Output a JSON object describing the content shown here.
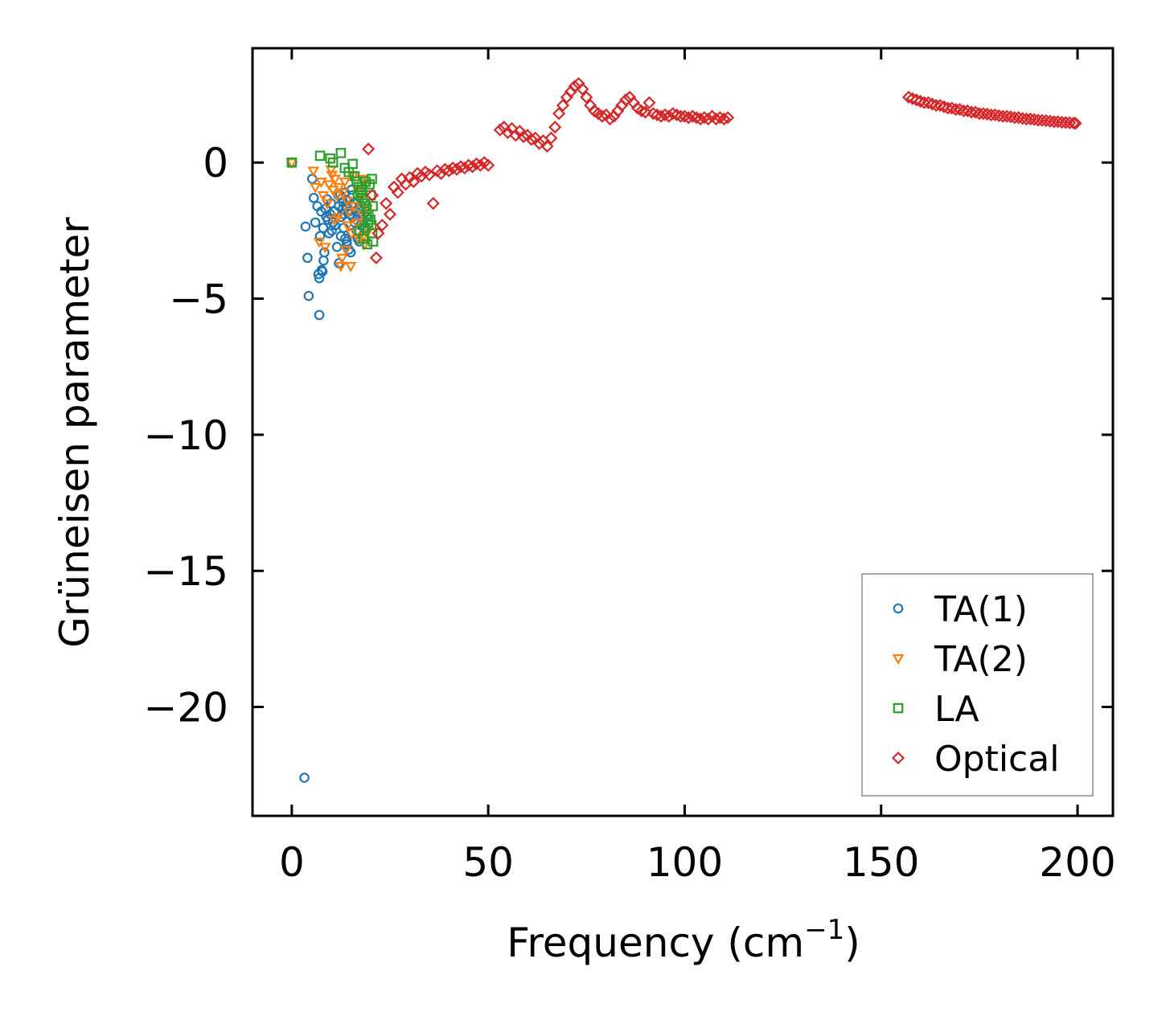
{
  "chart_data": {
    "type": "scatter",
    "title": "",
    "xlabel": "Frequency (cm",
    "xlabel_sup": "−1",
    "xlabel_close": ")",
    "ylabel": "Grüneisen parameter",
    "xlim": [
      -10,
      209
    ],
    "ylim": [
      -24,
      4.2
    ],
    "xticks": [
      0,
      50,
      100,
      150,
      200
    ],
    "xtick_labels": [
      "0",
      "50",
      "100",
      "150",
      "200"
    ],
    "yticks": [
      0,
      -5,
      -10,
      -15,
      -20
    ],
    "ytick_labels": [
      "0",
      "−5",
      "−10",
      "−15",
      "−20"
    ],
    "grid": false,
    "legend_position": "lower-right",
    "series": [
      {
        "name": "TA(1)",
        "marker": "circle",
        "color": "#1f77b4",
        "x": [
          0.1,
          3.2,
          3.5,
          4.0,
          4.3,
          5.2,
          5.6,
          6.0,
          6.5,
          7.0,
          7.0,
          7.2,
          7.5,
          7.8,
          8.0,
          8.3,
          8.6,
          9.0,
          9.2,
          9.5,
          9.8,
          10.0,
          10.2,
          10.5,
          10.8,
          11.0,
          11.5,
          12.0,
          12.0,
          12.3,
          12.5,
          12.8,
          13.0,
          13.2,
          13.5,
          13.6,
          13.8,
          14.0,
          14.2,
          14.5,
          14.8,
          15.0,
          15.2,
          15.5,
          15.8,
          16.0,
          16.3,
          16.5,
          16.8,
          17.0,
          17.2,
          17.5,
          17.8,
          18.0,
          18.3,
          18.5,
          18.8,
          19.0,
          13.0,
          14.5,
          15.5,
          16.5,
          17.5,
          12.5,
          11.8,
          14.0,
          15.2,
          16.8,
          18.2,
          13.3,
          6.8,
          7.6,
          8.1,
          8.8
        ],
        "y": [
          0.0,
          -22.6,
          -2.35,
          -3.5,
          -4.9,
          -0.6,
          -1.3,
          -2.2,
          -1.6,
          -4.25,
          -5.6,
          -2.7,
          -1.8,
          -4.0,
          -2.4,
          -3.3,
          -1.7,
          -1.35,
          -2.1,
          -2.6,
          -1.9,
          -1.5,
          -2.5,
          -2.2,
          -1.8,
          -2.3,
          -3.1,
          -3.7,
          -1.6,
          -1.2,
          -2.0,
          -1.3,
          -1.7,
          -2.4,
          -1.1,
          -2.8,
          -1.6,
          -2.9,
          -1.4,
          -3.2,
          -1.9,
          -3.3,
          -2.6,
          -1.2,
          -1.5,
          -2.2,
          -1.8,
          -2.5,
          -1.4,
          -1.7,
          -2.9,
          -2.3,
          -1.6,
          -2.1,
          -1.9,
          -2.4,
          -1.5,
          -2.0,
          -1.45,
          -1.8,
          -2.0,
          -2.1,
          -1.7,
          -2.7,
          -1.2,
          -3.0,
          -1.0,
          -2.8,
          -2.2,
          -1.9,
          -4.1,
          -3.95,
          -3.6,
          -2.0
        ]
      },
      {
        "name": "TA(2)",
        "marker": "triangle-down",
        "color": "#ff7f0e",
        "x": [
          0.0,
          5.5,
          6.0,
          7.5,
          8.5,
          9.5,
          10.0,
          10.5,
          11.0,
          11.5,
          12.0,
          12.5,
          13.0,
          13.5,
          14.0,
          14.5,
          15.0,
          15.5,
          16.0,
          16.5,
          17.0,
          17.5,
          18.0,
          18.5,
          19.0,
          19.5,
          7.0,
          9.0,
          11.8,
          13.8,
          15.2,
          16.8,
          18.2,
          8.0,
          10.2,
          14.2,
          17.8,
          19.2,
          12.8,
          10.8
        ],
        "y": [
          0.0,
          -0.3,
          -0.9,
          -0.7,
          -3.1,
          -0.8,
          -0.25,
          -1.0,
          -0.6,
          -1.2,
          -0.9,
          -3.8,
          -1.1,
          -0.7,
          -1.4,
          -1.8,
          -3.8,
          -0.5,
          -1.6,
          -2.2,
          -2.8,
          -1.3,
          -1.9,
          -3.0,
          -0.8,
          -2.5,
          -2.9,
          -1.5,
          -2.0,
          -3.2,
          -2.6,
          -1.0,
          -2.7,
          -1.2,
          -0.45,
          -2.3,
          -0.6,
          -1.7,
          -3.5,
          -2.1
        ]
      },
      {
        "name": "LA",
        "marker": "square",
        "color": "#2ca02c",
        "x": [
          0.0,
          7.2,
          9.8,
          10.5,
          12.5,
          13.5,
          14.5,
          15.5,
          16.0,
          16.5,
          17.0,
          17.5,
          18.0,
          18.5,
          19.0,
          19.5,
          20.0,
          20.3,
          20.5,
          20.7,
          17.2,
          18.2,
          19.2,
          20.1,
          19.8,
          18.8,
          17.8,
          16.8,
          20.6,
          19.4,
          18.6,
          20.4
        ],
        "y": [
          0.0,
          0.25,
          0.15,
          0.0,
          0.35,
          -0.2,
          -0.35,
          -0.05,
          -0.5,
          -0.7,
          -0.9,
          -1.1,
          -1.3,
          -1.5,
          -1.7,
          -1.9,
          -2.1,
          -2.3,
          -2.6,
          -2.9,
          -2.5,
          -2.8,
          -3.0,
          -1.2,
          -0.8,
          -0.7,
          -0.9,
          -1.2,
          -1.6,
          -2.2,
          -2.4,
          -0.6
        ]
      },
      {
        "name": "Optical",
        "marker": "diamond",
        "color": "#d62728",
        "x": [
          19.5,
          20.5,
          21.5,
          22.0,
          23.0,
          24.0,
          25.0,
          26.0,
          27.0,
          28.0,
          29.0,
          30.0,
          31.0,
          32.0,
          33.0,
          34.0,
          35.0,
          36.0,
          37.0,
          38.0,
          39.0,
          40.0,
          41.0,
          42.0,
          43.0,
          44.0,
          45.0,
          46.0,
          47.0,
          48.0,
          49.0,
          50.0,
          53.0,
          54.0,
          55.0,
          56.0,
          57.0,
          58.0,
          59.0,
          60.0,
          61.0,
          62.0,
          63.0,
          64.0,
          65.0,
          66.0,
          67.0,
          68.0,
          69.0,
          70.0,
          71.0,
          72.0,
          73.0,
          74.0,
          75.0,
          76.0,
          77.0,
          78.0,
          79.0,
          80.0,
          81.0,
          82.0,
          83.0,
          84.0,
          85.0,
          86.0,
          87.0,
          88.0,
          89.0,
          90.0,
          91.0,
          92.0,
          93.0,
          94.0,
          95.0,
          96.0,
          97.0,
          98.0,
          99.0,
          100.0,
          101.0,
          102.0,
          103.0,
          104.0,
          105.0,
          106.0,
          107.0,
          108.0,
          109.0,
          110.0,
          111.0,
          157.0,
          158.0,
          159.0,
          160.0,
          161.0,
          162.0,
          163.0,
          164.0,
          165.0,
          166.0,
          167.0,
          168.0,
          169.0,
          170.0,
          171.0,
          172.0,
          173.0,
          174.0,
          175.0,
          176.0,
          177.0,
          178.0,
          179.0,
          180.0,
          181.0,
          182.0,
          183.0,
          184.0,
          185.0,
          186.0,
          187.0,
          188.0,
          189.0,
          190.0,
          191.0,
          192.0,
          193.0,
          194.0,
          195.0,
          196.0,
          197.0,
          198.0,
          199.0,
          199.5
        ],
        "y": [
          0.5,
          -1.2,
          -3.5,
          -2.6,
          -2.3,
          -1.5,
          -1.9,
          -0.9,
          -1.1,
          -0.6,
          -0.8,
          -0.55,
          -0.7,
          -0.4,
          -0.5,
          -0.35,
          -0.45,
          -1.5,
          -0.3,
          -0.4,
          -0.25,
          -0.3,
          -0.2,
          -0.25,
          -0.15,
          -0.2,
          -0.1,
          -0.15,
          -0.05,
          -0.1,
          0.0,
          -0.1,
          1.2,
          1.3,
          1.1,
          1.25,
          1.0,
          1.15,
          0.95,
          1.0,
          0.85,
          0.9,
          0.7,
          0.8,
          0.6,
          0.9,
          1.3,
          1.8,
          2.1,
          2.4,
          2.6,
          2.8,
          2.9,
          2.7,
          2.4,
          2.1,
          1.9,
          1.8,
          1.7,
          1.75,
          1.6,
          1.7,
          1.9,
          2.1,
          2.3,
          2.4,
          2.2,
          2.0,
          1.9,
          1.85,
          2.2,
          1.8,
          1.75,
          1.7,
          1.75,
          1.7,
          1.8,
          1.75,
          1.7,
          1.7,
          1.65,
          1.7,
          1.65,
          1.6,
          1.65,
          1.6,
          1.7,
          1.6,
          1.65,
          1.6,
          1.65,
          2.4,
          2.35,
          2.3,
          2.25,
          2.2,
          2.2,
          2.15,
          2.1,
          2.1,
          2.05,
          2.0,
          2.0,
          1.95,
          1.95,
          1.9,
          1.9,
          1.85,
          1.85,
          1.8,
          1.8,
          1.78,
          1.75,
          1.75,
          1.72,
          1.7,
          1.7,
          1.68,
          1.65,
          1.65,
          1.62,
          1.6,
          1.6,
          1.58,
          1.56,
          1.55,
          1.54,
          1.52,
          1.5,
          1.5,
          1.48,
          1.47,
          1.46,
          1.45,
          1.44
        ]
      }
    ]
  }
}
